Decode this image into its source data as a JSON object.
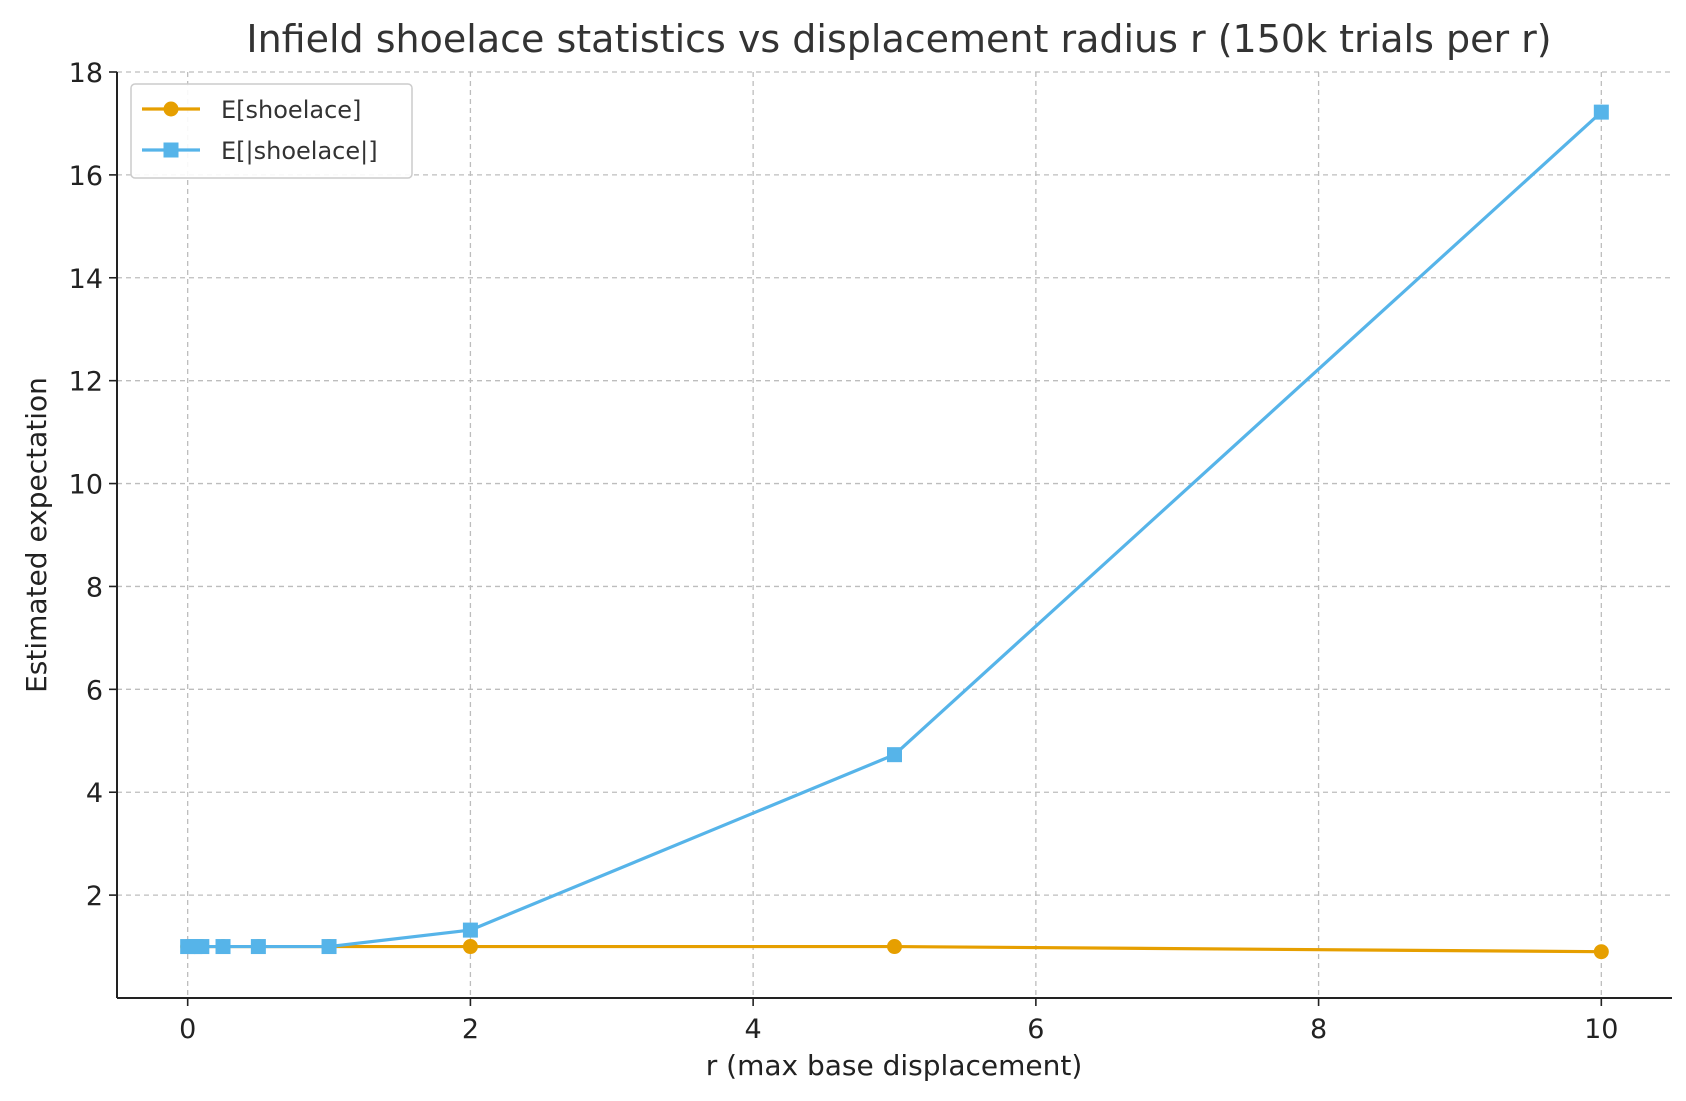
{
  "chart_data": {
    "type": "line",
    "title": "Infield shoelace statistics vs displacement radius r (150k trials per r)",
    "xlabel": "r (max base displacement)",
    "ylabel": "Estimated expectation",
    "xlim": [
      -0.5,
      10.5
    ],
    "ylim": [
      0,
      18
    ],
    "xticks": [
      0,
      2,
      4,
      6,
      8,
      10
    ],
    "yticks": [
      2,
      4,
      6,
      8,
      10,
      12,
      14,
      16,
      18
    ],
    "grid": true,
    "legend_position": "top-left",
    "x": [
      0,
      0.05,
      0.1,
      0.25,
      0.5,
      1,
      2,
      5,
      10
    ],
    "series": [
      {
        "name": "E[shoelace]",
        "color": "#E69F00",
        "marker": "circle",
        "values": [
          1.0,
          1.0,
          1.0,
          1.0,
          1.0,
          1.0,
          1.0,
          1.0,
          0.9
        ]
      },
      {
        "name": "E[|shoelace|]",
        "color": "#56B4E9",
        "marker": "square",
        "values": [
          1.0,
          1.0,
          1.0,
          1.0,
          1.0,
          1.0,
          1.32,
          4.73,
          17.22
        ]
      }
    ]
  }
}
